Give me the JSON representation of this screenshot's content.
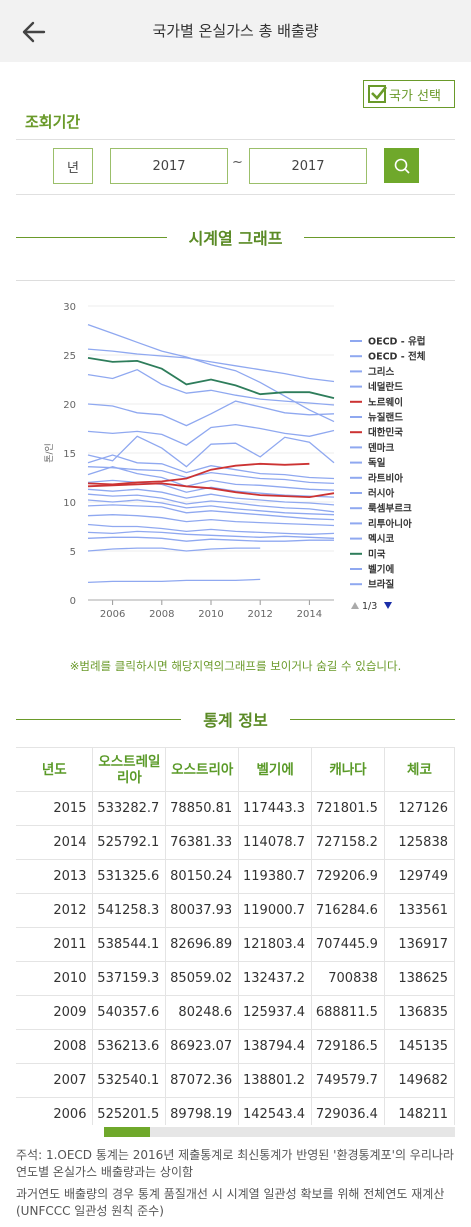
{
  "header": {
    "title": "국가별 온실가스 총 배출량"
  },
  "filters": {
    "country_select_label": "국가 선택",
    "period_label": "조회기간",
    "unit_value": "년",
    "from_year": "2017",
    "tilde": "~",
    "to_year": "2017"
  },
  "chart_section": {
    "title": "시계열 그래프"
  },
  "chart_data": {
    "type": "line",
    "ylabel": "톤/인",
    "ylim": [
      0,
      30
    ],
    "yticks": [
      "0",
      "5",
      "10",
      "15",
      "20",
      "25",
      "30"
    ],
    "xlim": [
      2005,
      2015
    ],
    "xticks": [
      "2006",
      "2008",
      "2010",
      "2012",
      "2014"
    ],
    "x": [
      2005,
      2006,
      2007,
      2008,
      2009,
      2010,
      2011,
      2012,
      2013,
      2014,
      2015
    ],
    "legend_items": [
      "OECD - 유럽",
      "OECD - 전체",
      "그리스",
      "네덜란드",
      "노르웨이",
      "뉴질랜드",
      "대한민국",
      "덴마크",
      "독일",
      "라트비아",
      "러시아",
      "룩셈부르크",
      "리투아니아",
      "멕시코",
      "미국",
      "벨기에",
      "브라질"
    ],
    "legend_page": "1/3",
    "series": [
      {
        "name": "미국",
        "color": "#2e7d5b",
        "values": [
          24.7,
          24.3,
          24.4,
          23.6,
          22.0,
          22.5,
          21.9,
          21.0,
          21.2,
          21.2,
          20.6
        ]
      },
      {
        "name": "노르웨이",
        "color": "#cc3333",
        "values": [
          11.9,
          11.8,
          12.0,
          12.1,
          12.4,
          13.3,
          13.7,
          13.9,
          13.8,
          13.9,
          null
        ]
      },
      {
        "name": "대한민국",
        "color": "#cc3333",
        "values": [
          11.6,
          11.7,
          11.8,
          11.9,
          11.6,
          11.4,
          11.0,
          10.7,
          10.6,
          10.5,
          10.9
        ]
      },
      {
        "name": "",
        "color": "#8fa8f0",
        "values": [
          28.1,
          27.2,
          26.3,
          25.4,
          24.8,
          24.0,
          23.4,
          22.2,
          20.8,
          19.4,
          18.2
        ]
      },
      {
        "name": "",
        "color": "#8fa8f0",
        "values": [
          25.6,
          25.4,
          25.1,
          24.9,
          24.7,
          24.3,
          23.9,
          23.5,
          23.1,
          22.6,
          22.3
        ]
      },
      {
        "name": "",
        "color": "#8fa8f0",
        "values": [
          23.0,
          22.6,
          23.5,
          22.0,
          21.1,
          21.4,
          20.9,
          20.5,
          20.3,
          20.1,
          19.9
        ]
      },
      {
        "name": "",
        "color": "#8fa8f0",
        "values": [
          20.0,
          19.8,
          19.1,
          18.9,
          17.8,
          19.0,
          20.3,
          19.7,
          19.1,
          18.9,
          19.0
        ]
      },
      {
        "name": "",
        "color": "#8fa8f0",
        "values": [
          17.2,
          17.0,
          17.2,
          16.9,
          15.8,
          17.6,
          17.9,
          17.5,
          17.0,
          16.7,
          17.3
        ]
      },
      {
        "name": "",
        "color": "#8fa8f0",
        "values": [
          14.8,
          14.2,
          16.7,
          15.5,
          13.6,
          15.9,
          16.0,
          14.6,
          16.6,
          16.1,
          14.0
        ]
      },
      {
        "name": "",
        "color": "#8fa8f0",
        "values": [
          14.0,
          14.8,
          14.0,
          13.9,
          13.0,
          13.7,
          13.3,
          12.9,
          12.8,
          12.5,
          12.4
        ]
      },
      {
        "name": "",
        "color": "#8fa8f0",
        "values": [
          13.6,
          13.5,
          13.3,
          13.2,
          12.5,
          13.0,
          12.7,
          12.4,
          12.3,
          12.0,
          11.9
        ]
      },
      {
        "name": "",
        "color": "#8fa8f0",
        "values": [
          12.8,
          13.6,
          12.9,
          12.5,
          11.6,
          12.2,
          11.8,
          11.7,
          11.5,
          11.3,
          11.2
        ]
      },
      {
        "name": "",
        "color": "#8fa8f0",
        "values": [
          12.0,
          12.2,
          12.0,
          11.8,
          11.0,
          11.5,
          11.1,
          10.9,
          10.7,
          10.6,
          10.5
        ]
      },
      {
        "name": "",
        "color": "#8fa8f0",
        "values": [
          11.3,
          11.1,
          11.3,
          11.0,
          10.4,
          10.8,
          10.4,
          10.2,
          10.0,
          9.9,
          9.7
        ]
      },
      {
        "name": "",
        "color": "#8fa8f0",
        "values": [
          10.8,
          10.6,
          10.7,
          10.4,
          9.8,
          10.1,
          9.9,
          9.6,
          9.4,
          9.3,
          9.0
        ]
      },
      {
        "name": "",
        "color": "#8fa8f0",
        "values": [
          10.2,
          10.0,
          10.2,
          9.9,
          9.4,
          9.6,
          9.3,
          9.1,
          8.9,
          8.8,
          8.7
        ]
      },
      {
        "name": "",
        "color": "#8fa8f0",
        "values": [
          9.6,
          9.7,
          9.6,
          9.5,
          8.9,
          9.1,
          8.9,
          8.7,
          8.5,
          8.3,
          8.2
        ]
      },
      {
        "name": "",
        "color": "#8fa8f0",
        "values": [
          8.6,
          8.7,
          8.6,
          8.4,
          8.0,
          8.2,
          8.0,
          7.9,
          7.8,
          7.7,
          7.6
        ]
      },
      {
        "name": "",
        "color": "#8fa8f0",
        "values": [
          7.7,
          7.5,
          7.5,
          7.3,
          7.0,
          7.2,
          7.0,
          6.9,
          6.8,
          6.7,
          6.8
        ]
      },
      {
        "name": "",
        "color": "#8fa8f0",
        "values": [
          6.9,
          6.8,
          7.0,
          6.9,
          6.7,
          6.6,
          6.5,
          6.4,
          6.5,
          6.4,
          6.3
        ]
      },
      {
        "name": "",
        "color": "#8fa8f0",
        "values": [
          6.3,
          6.4,
          6.4,
          6.3,
          6.0,
          6.2,
          6.1,
          6.0,
          6.0,
          6.1,
          6.1
        ]
      },
      {
        "name": "",
        "color": "#8fa8f0",
        "values": [
          5.0,
          5.2,
          5.3,
          5.3,
          5.0,
          5.2,
          5.3,
          5.3,
          null,
          null,
          null
        ]
      },
      {
        "name": "",
        "color": "#8fa8f0",
        "values": [
          1.8,
          1.9,
          1.9,
          1.9,
          2.0,
          2.0,
          2.0,
          2.1,
          null,
          null,
          null
        ]
      }
    ]
  },
  "note": "※범례를 클릭하시면 해당지역의그래프를 보이거나 숨길 수 있습니다.",
  "stats_section": {
    "title": "통계 정보"
  },
  "table": {
    "headers": [
      "년도",
      "오스트레일리아",
      "오스트리아",
      "벨기에",
      "캐나다",
      "체코"
    ],
    "rows": [
      [
        "2015",
        "533282.7",
        "78850.81",
        "117443.3",
        "721801.5",
        "127126"
      ],
      [
        "2014",
        "525792.1",
        "76381.33",
        "114078.7",
        "727158.2",
        "125838"
      ],
      [
        "2013",
        "531325.6",
        "80150.24",
        "119380.7",
        "729206.9",
        "129749"
      ],
      [
        "2012",
        "541258.3",
        "80037.93",
        "119000.7",
        "716284.6",
        "133561"
      ],
      [
        "2011",
        "538544.1",
        "82696.89",
        "121803.4",
        "707445.9",
        "136917"
      ],
      [
        "2010",
        "537159.3",
        "85059.02",
        "132437.2",
        "700838",
        "138625"
      ],
      [
        "2009",
        "540357.6",
        "80248.6",
        "125937.4",
        "688811.5",
        "136835"
      ],
      [
        "2008",
        "536213.6",
        "86923.07",
        "138794.4",
        "729186.5",
        "145135"
      ],
      [
        "2007",
        "532540.1",
        "87072.36",
        "138801.2",
        "749579.7",
        "149682"
      ],
      [
        "2006",
        "525201.5",
        "89798.19",
        "142543.4",
        "729036.4",
        "148211"
      ]
    ]
  },
  "footnotes": [
    "주석: 1.OECD 통계는 2016년 제출통계로 최신통계가 반영된 '환경통계포'의 우리나라 연도별 온실가스 배출량과는 상이함",
    "과거연도 배출량의 경우 통계 품질개선 시 시계열 일관성 확보를 위해 전체연도 재계산(UNFCCC 일관성 원칙 준수)"
  ],
  "colors": {
    "accent": "#6fa82b",
    "accent_text": "#5a9a28",
    "series_default": "#8fa8f0"
  }
}
